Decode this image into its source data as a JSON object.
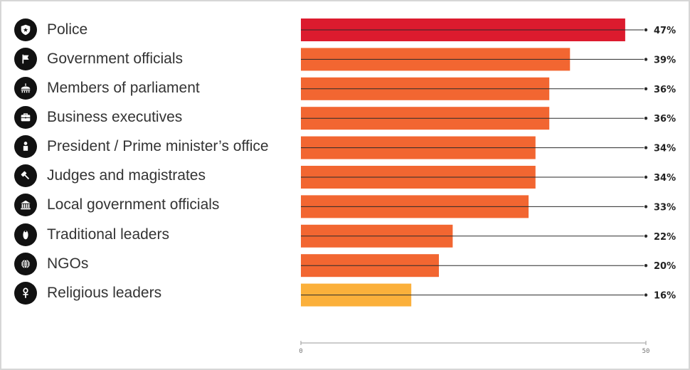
{
  "chart_data": {
    "type": "bar",
    "orientation": "horizontal",
    "categories": [
      "Police",
      "Government officials",
      "Members of parliament",
      "Business executives",
      "President / Prime minister’s office",
      "Judges and magistrates",
      "Local government officials",
      "Traditional leaders",
      "NGOs",
      "Religious leaders"
    ],
    "values": [
      47,
      39,
      36,
      36,
      34,
      34,
      33,
      22,
      20,
      16
    ],
    "value_labels": [
      "47%",
      "39%",
      "36%",
      "36%",
      "34%",
      "34%",
      "33%",
      "22%",
      "20%",
      "16%"
    ],
    "icons": [
      "shield-icon",
      "flag-icon",
      "parliament-icon",
      "briefcase-icon",
      "person-icon",
      "gavel-icon",
      "government-building-icon",
      "traditional-leader-icon",
      "globe-icon",
      "ankh-icon"
    ],
    "bar_colors": [
      "#dc1b2e",
      "#f26631",
      "#f26631",
      "#f26631",
      "#f26631",
      "#f26631",
      "#f26631",
      "#f26631",
      "#f26631",
      "#fbb03b"
    ],
    "xlim": [
      0,
      50
    ],
    "tick_labels": [
      "0",
      "50"
    ],
    "grid": false,
    "legend": false
  }
}
